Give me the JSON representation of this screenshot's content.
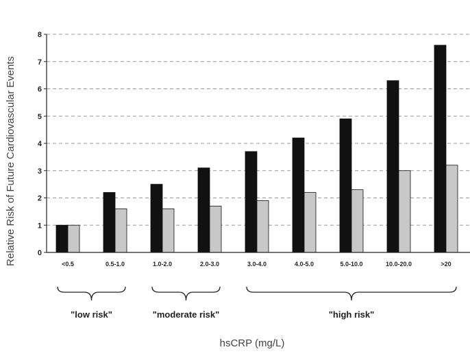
{
  "chart_data": {
    "type": "bar",
    "categories": [
      "<0.5",
      "0.5-1.0",
      "1.0-2.0",
      "2.0-3.0",
      "3.0-4.0",
      "4.0-5.0",
      "5.0-10.0",
      "10.0-20.0",
      ">20"
    ],
    "series": [
      {
        "values": [
          1.0,
          2.2,
          2.5,
          3.1,
          3.7,
          4.2,
          4.9,
          6.3,
          7.6
        ],
        "color": "#111111"
      },
      {
        "values": [
          1.0,
          1.6,
          1.6,
          1.7,
          1.9,
          2.2,
          2.3,
          3.0,
          3.2
        ],
        "color": "#c8c8c8"
      }
    ],
    "xlabel": "hsCRP (mg/L)",
    "ylabel": "Relative Risk of Future Cardiovascular Events",
    "ylim": [
      0,
      8
    ],
    "yticks": [
      "0",
      "1",
      "2",
      "3",
      "4",
      "5",
      "6",
      "7",
      "8"
    ],
    "grid": true,
    "groups": [
      {
        "label": "\"low risk\"",
        "from": 0,
        "to": 1
      },
      {
        "label": "\"moderate risk\"",
        "from": 2,
        "to": 3
      },
      {
        "label": "\"high risk\"",
        "from": 4,
        "to": 8
      }
    ]
  }
}
